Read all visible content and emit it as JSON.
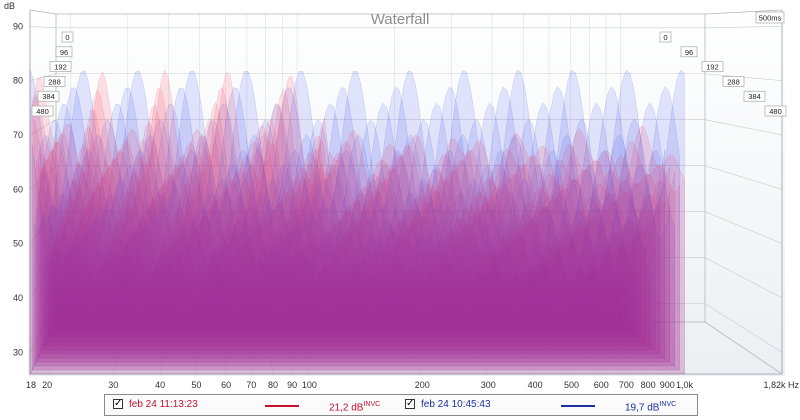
{
  "chart_data": {
    "type": "waterfall",
    "title": "Waterfall",
    "y_unit": "dB",
    "y_ticks": [
      30,
      40,
      50,
      60,
      70,
      80,
      90
    ],
    "ylim": [
      26,
      93
    ],
    "x_ticks": [
      "18",
      "20",
      "30",
      "40",
      "50",
      "60",
      "70",
      "80",
      "90",
      "100",
      "200",
      "300",
      "400",
      "500",
      "600",
      "700",
      "800",
      "900",
      "1,0k",
      "1,82k Hz"
    ],
    "x_tick_values": [
      18,
      20,
      30,
      40,
      50,
      60,
      70,
      80,
      90,
      100,
      200,
      300,
      400,
      500,
      600,
      700,
      800,
      900,
      1000,
      1820
    ],
    "xlim": [
      18,
      1820
    ],
    "time_ticks_left": [
      "0",
      "96",
      "192",
      "288",
      "384",
      "480"
    ],
    "time_ticks_right": [
      "0",
      "96",
      "192",
      "288",
      "384",
      "480"
    ],
    "time_max_label": "500ms",
    "series": [
      {
        "name": "feb 24 11:13:23",
        "color": "#e8243f",
        "offset_value": "21,2 dB",
        "offset_suffix": "INVC"
      },
      {
        "name": "feb 24 10:45:43",
        "color": "#2a3fd6",
        "offset_value": "19,7 dB",
        "offset_suffix": "INVC"
      }
    ]
  }
}
